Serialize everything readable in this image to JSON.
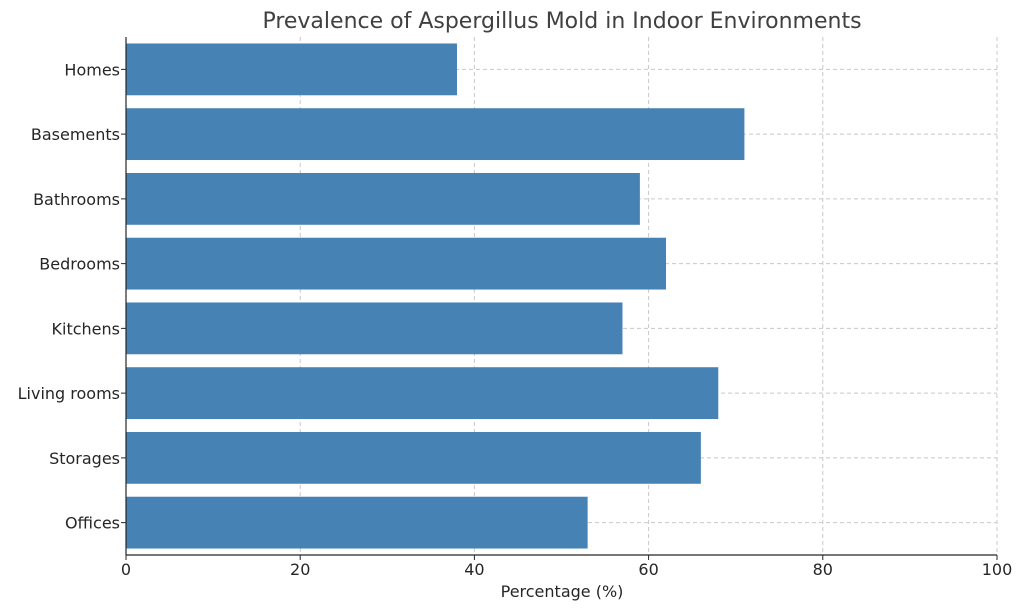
{
  "chart_data": {
    "type": "bar",
    "orientation": "horizontal",
    "title": "Prevalence of Aspergillus Mold in Indoor Environments",
    "xlabel": "Percentage (%)",
    "ylabel": "",
    "categories": [
      "Homes",
      "Basements",
      "Bathrooms",
      "Bedrooms",
      "Kitchens",
      "Living rooms",
      "Storages",
      "Offices"
    ],
    "values": [
      38,
      71,
      59,
      62,
      57,
      68,
      66,
      53
    ],
    "xlim": [
      0,
      100
    ],
    "xticks": [
      "0",
      "20",
      "40",
      "60",
      "80",
      "100"
    ],
    "grid": true,
    "bar_color": "#4682b4"
  }
}
